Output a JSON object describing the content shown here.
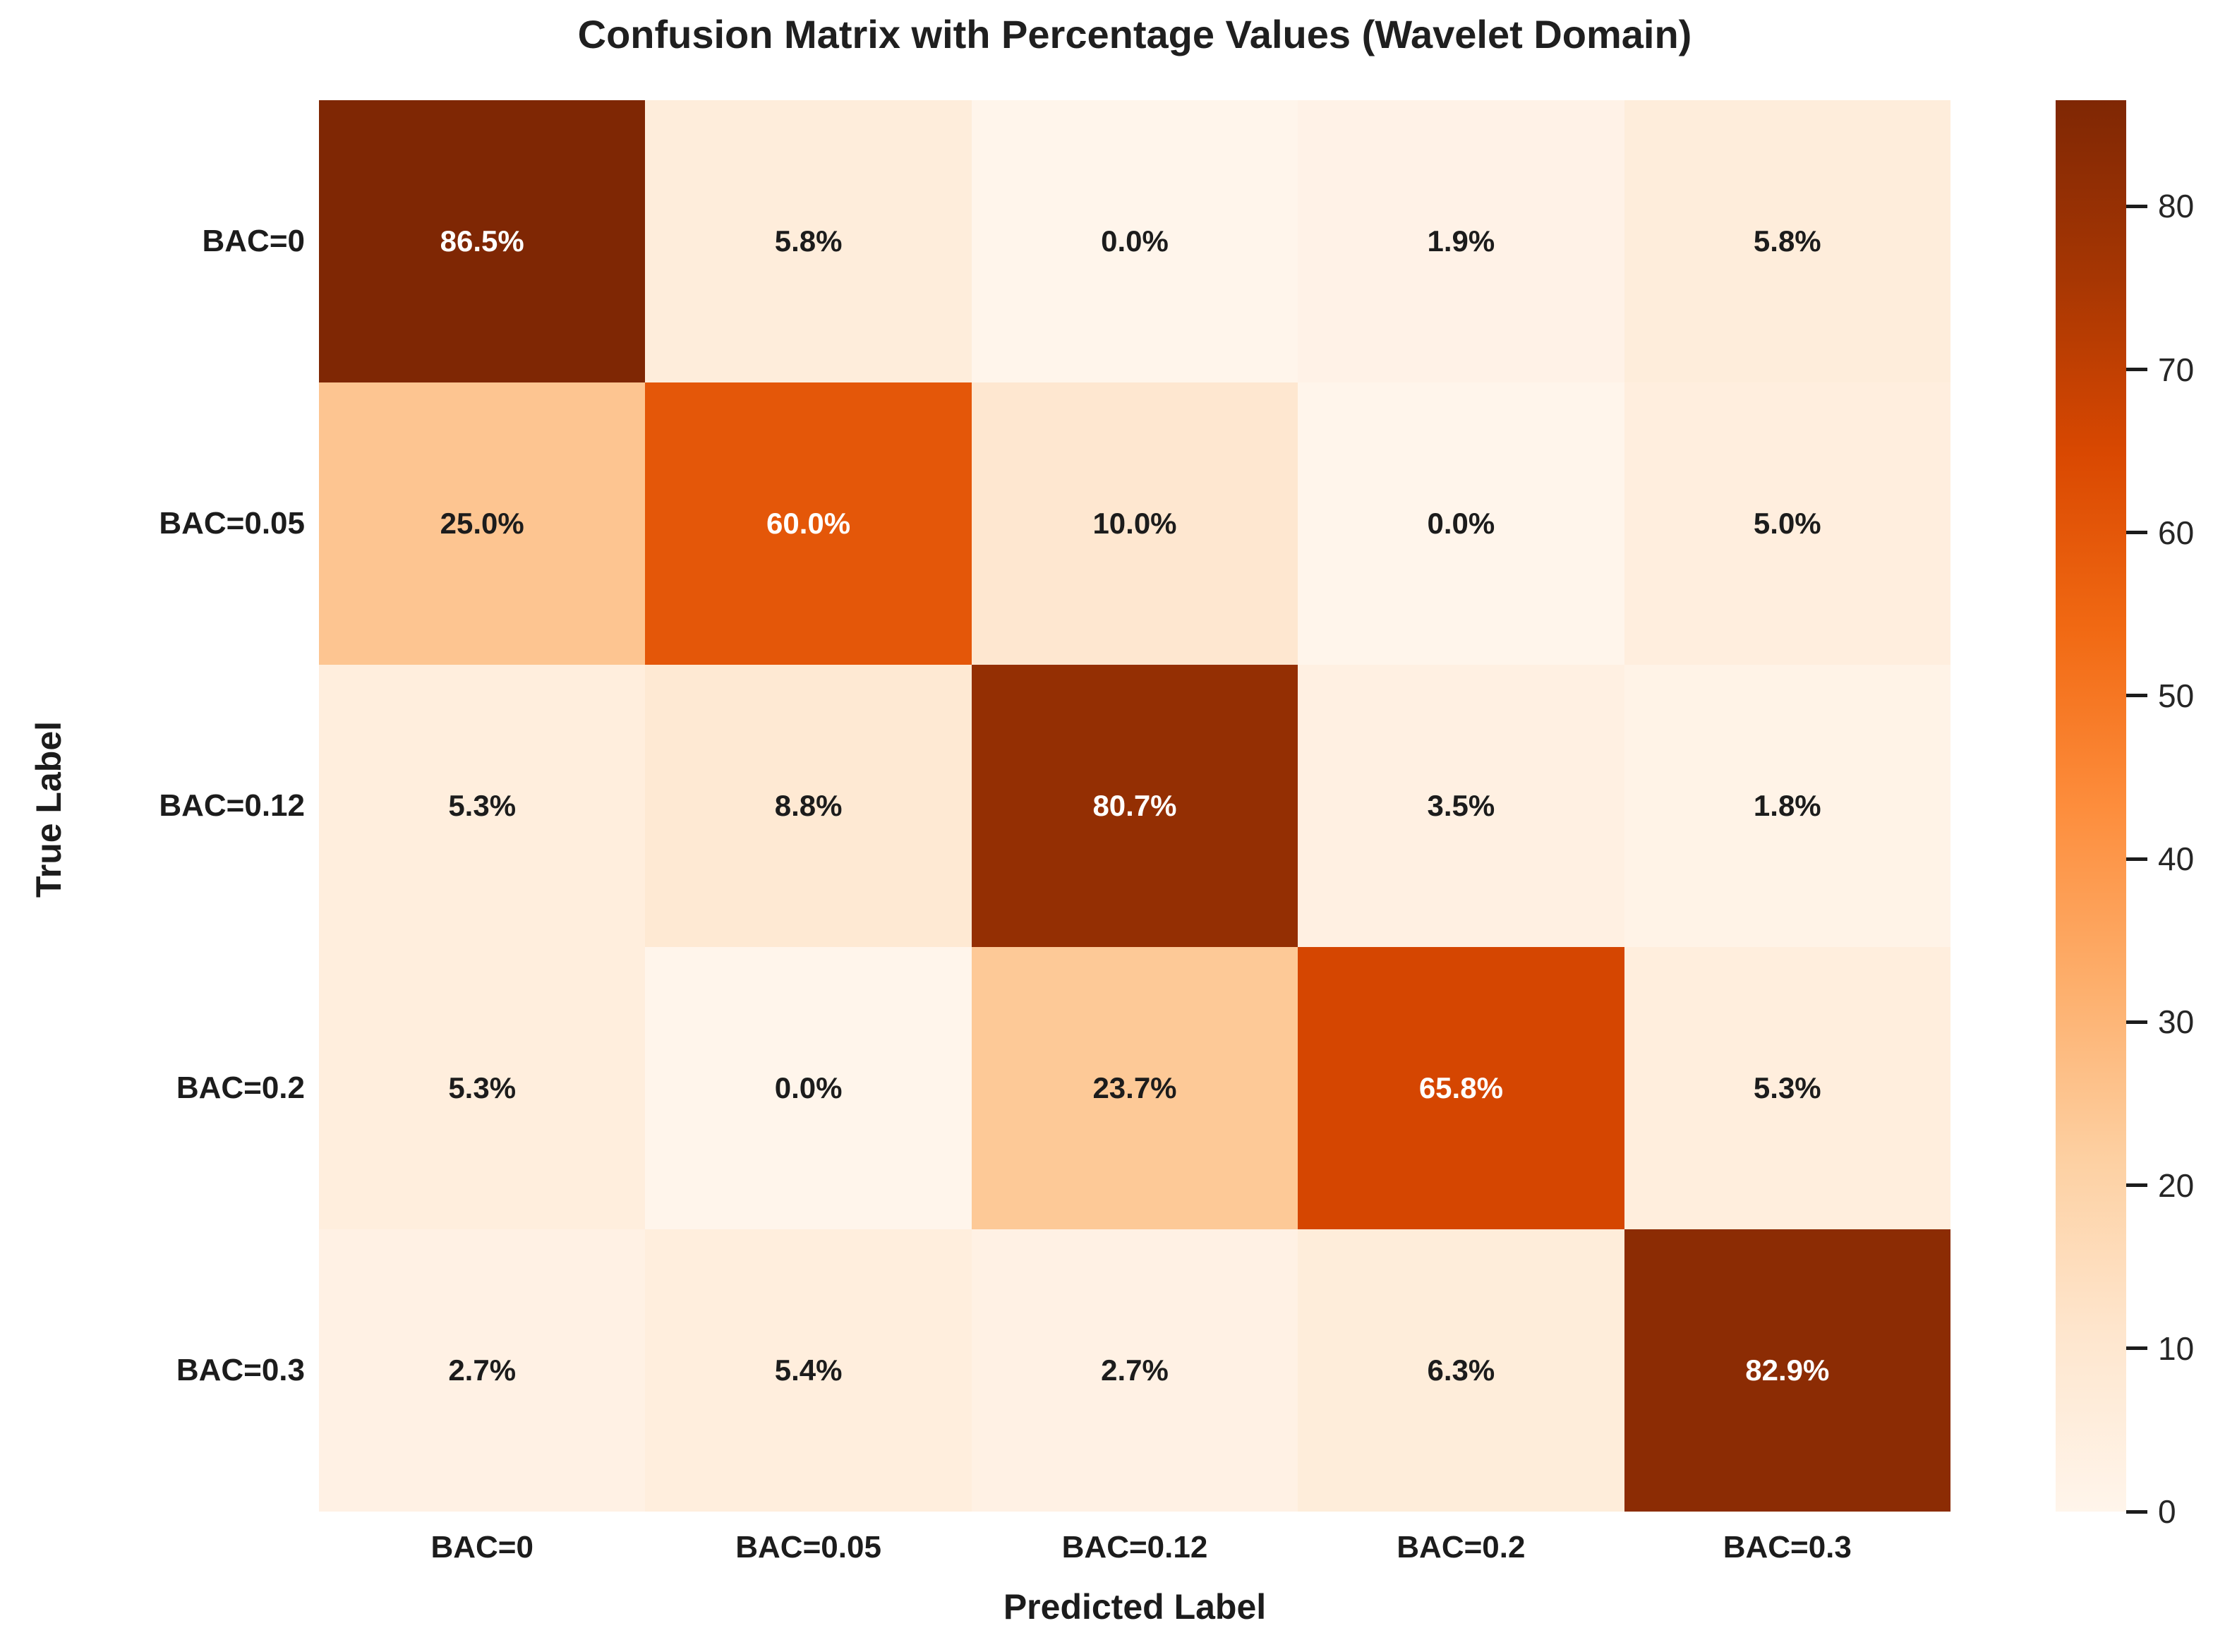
{
  "chart_data": {
    "type": "heatmap",
    "title": "Confusion Matrix with Percentage Values (Wavelet Domain)",
    "xlabel": "Predicted Label",
    "ylabel": "True Label",
    "row_labels": [
      "BAC=0",
      "BAC=0.05",
      "BAC=0.12",
      "BAC=0.2",
      "BAC=0.3"
    ],
    "col_labels": [
      "BAC=0",
      "BAC=0.05",
      "BAC=0.12",
      "BAC=0.2",
      "BAC=0.3"
    ],
    "values_percent": [
      [
        86.5,
        5.8,
        0.0,
        1.9,
        5.8
      ],
      [
        25.0,
        60.0,
        10.0,
        0.0,
        5.0
      ],
      [
        5.3,
        8.8,
        80.7,
        3.5,
        1.8
      ],
      [
        5.3,
        0.0,
        23.7,
        65.8,
        5.3
      ],
      [
        2.7,
        5.4,
        2.7,
        6.3,
        82.9
      ]
    ],
    "cell_labels": [
      [
        "86.5%",
        "5.8%",
        "0.0%",
        "1.9%",
        "5.8%"
      ],
      [
        "25.0%",
        "60.0%",
        "10.0%",
        "0.0%",
        "5.0%"
      ],
      [
        "5.3%",
        "8.8%",
        "80.7%",
        "3.5%",
        "1.8%"
      ],
      [
        "5.3%",
        "0.0%",
        "23.7%",
        "65.8%",
        "5.3%"
      ],
      [
        "2.7%",
        "5.4%",
        "2.7%",
        "6.3%",
        "82.9%"
      ]
    ],
    "cell_colors": [
      [
        "#7f2704",
        "#feeddb",
        "#fff5eb",
        "#fff2e7",
        "#feeddb"
      ],
      [
        "#fdc591",
        "#e45709",
        "#fee7d0",
        "#fff5eb",
        "#ffeede"
      ],
      [
        "#ffeedd",
        "#fee9d3",
        "#942f03",
        "#fff0e2",
        "#fff3e7"
      ],
      [
        "#ffeedd",
        "#fff5eb",
        "#fdc997",
        "#d54601",
        "#ffeedd"
      ],
      [
        "#fff1e4",
        "#ffeedd",
        "#fff1e4",
        "#feedda",
        "#8c2c04"
      ]
    ],
    "annot_color_dark": "#1c1c1c",
    "annot_color_light": "#ffffff",
    "colormap": "Oranges",
    "grid": false,
    "colorbar": {
      "vmin": 0,
      "vmax": 86.5,
      "tick_labels": [
        "0",
        "10",
        "20",
        "30",
        "40",
        "50",
        "60",
        "70",
        "80"
      ],
      "tick_values": [
        0,
        10,
        20,
        30,
        40,
        50,
        60,
        70,
        80
      ],
      "gradient_stops_bottom_to_top": [
        "#fff5eb",
        "#fee6ce",
        "#fdd0a2",
        "#fdae6b",
        "#fd8d3c",
        "#f16913",
        "#d94801",
        "#a63603",
        "#7f2704"
      ]
    }
  }
}
